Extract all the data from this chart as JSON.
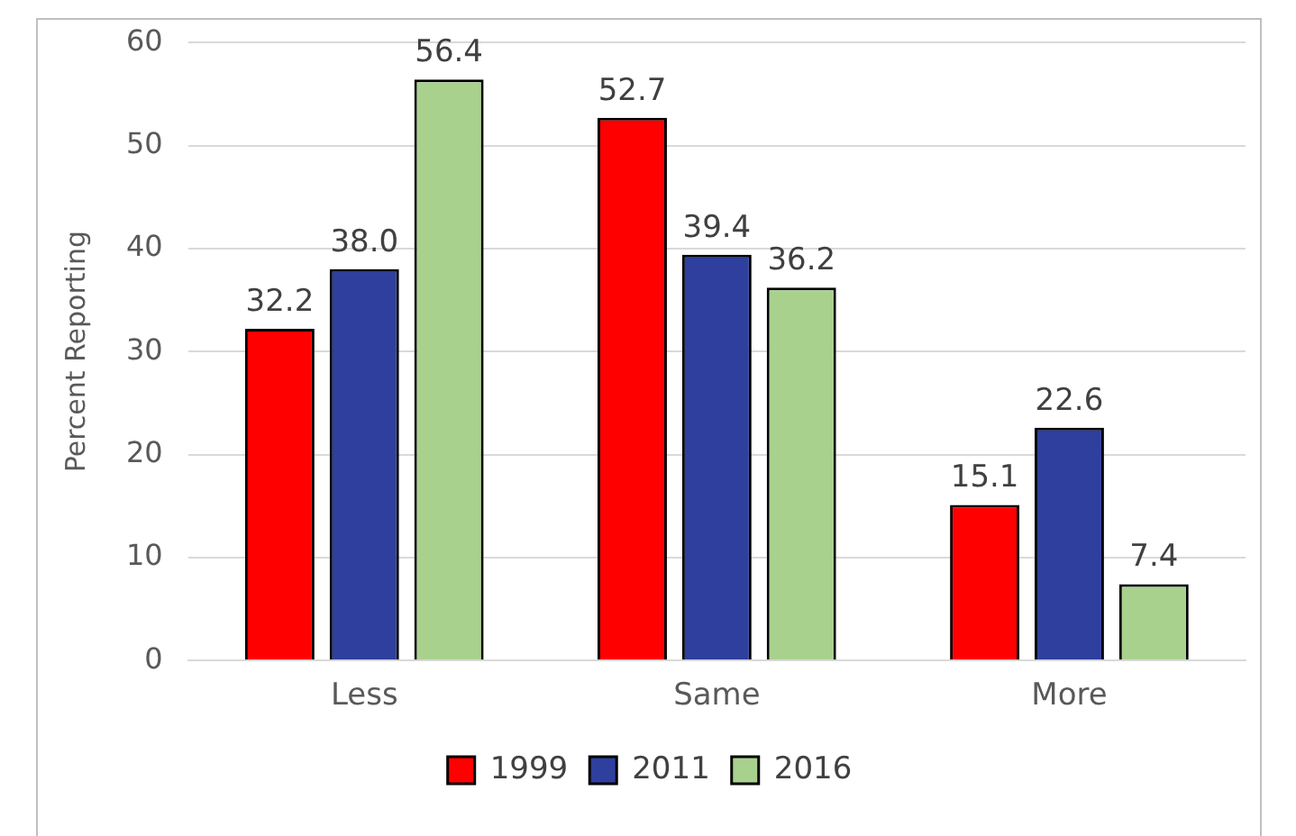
{
  "chart_data": {
    "type": "bar",
    "ylabel": "Percent Reporting",
    "categories": [
      "Less",
      "Same",
      "More"
    ],
    "series": [
      {
        "name": "1999",
        "color": "#ff0000",
        "values": [
          32.2,
          52.7,
          15.1
        ]
      },
      {
        "name": "2011",
        "color": "#2e3f9e",
        "values": [
          38.0,
          39.4,
          22.6
        ]
      },
      {
        "name": "2016",
        "color": "#a9d18e",
        "values": [
          56.4,
          36.2,
          7.4
        ]
      }
    ],
    "value_labels": [
      [
        "32.2",
        "52.7",
        "15.1"
      ],
      [
        "38.0",
        "39.4",
        "22.6"
      ],
      [
        "56.4",
        "36.2",
        "7.4"
      ]
    ],
    "ylim": [
      0,
      60
    ],
    "yticks": [
      0,
      10,
      20,
      30,
      40,
      50,
      60
    ],
    "grid": "y",
    "legend": "bottom"
  }
}
